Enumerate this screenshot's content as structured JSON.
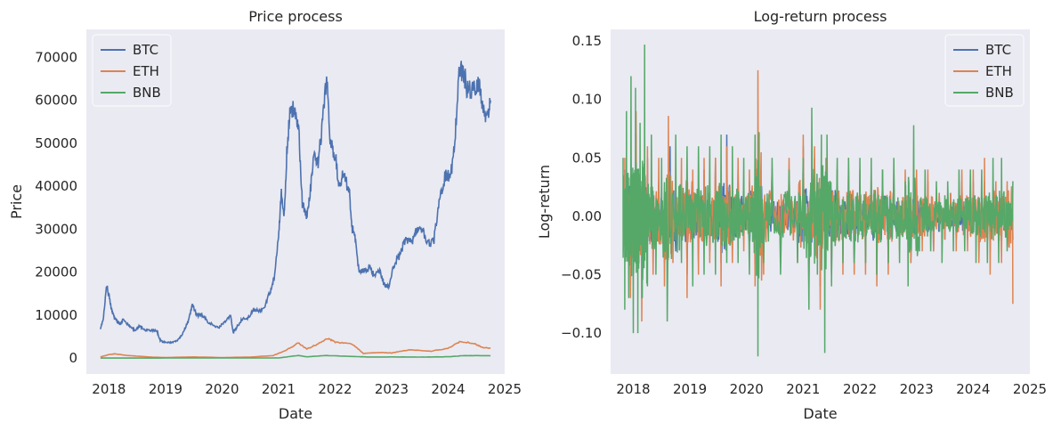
{
  "colors": {
    "background": "#eaeaf2",
    "BTC": "#4c72b0",
    "ETH": "#dd8452",
    "BNB": "#55a868"
  },
  "chart_data": [
    {
      "type": "line",
      "title": "Price process",
      "xlabel": "Date",
      "ylabel": "Price",
      "xlim": [
        2017.6,
        2025.0
      ],
      "ylim": [
        -3700,
        76500
      ],
      "xticks": [
        2018,
        2019,
        2020,
        2021,
        2022,
        2023,
        2024,
        2025
      ],
      "yticks": [
        0,
        10000,
        20000,
        30000,
        40000,
        50000,
        60000,
        70000
      ],
      "grid": false,
      "legend": "top-left",
      "series": [
        {
          "name": "BTC",
          "x": [
            2017.85,
            2017.9,
            2017.96,
            2018.0,
            2018.05,
            2018.1,
            2018.15,
            2018.2,
            2018.25,
            2018.35,
            2018.45,
            2018.55,
            2018.65,
            2018.75,
            2018.85,
            2018.9,
            2018.95,
            2019.0,
            2019.1,
            2019.2,
            2019.3,
            2019.4,
            2019.48,
            2019.55,
            2019.65,
            2019.75,
            2019.85,
            2019.95,
            2020.05,
            2020.15,
            2020.2,
            2020.25,
            2020.35,
            2020.45,
            2020.55,
            2020.65,
            2020.75,
            2020.85,
            2020.92,
            2021.0,
            2021.05,
            2021.1,
            2021.15,
            2021.2,
            2021.28,
            2021.35,
            2021.42,
            2021.5,
            2021.55,
            2021.62,
            2021.7,
            2021.78,
            2021.85,
            2021.92,
            2022.0,
            2022.08,
            2022.15,
            2022.25,
            2022.3,
            2022.35,
            2022.42,
            2022.5,
            2022.6,
            2022.7,
            2022.8,
            2022.87,
            2022.95,
            2023.05,
            2023.15,
            2023.25,
            2023.35,
            2023.45,
            2023.55,
            2023.65,
            2023.75,
            2023.85,
            2023.95,
            2024.05,
            2024.12,
            2024.2,
            2024.28,
            2024.35,
            2024.45,
            2024.55,
            2024.62,
            2024.7,
            2024.75
          ],
          "y": [
            7000,
            9000,
            17000,
            14500,
            11000,
            9500,
            8500,
            7800,
            9000,
            7500,
            6500,
            7500,
            6500,
            6500,
            6300,
            4300,
            3800,
            3700,
            3600,
            4000,
            5500,
            8500,
            12500,
            10000,
            10000,
            8500,
            7500,
            7200,
            8500,
            9800,
            6000,
            7000,
            9000,
            9300,
            11000,
            11000,
            11500,
            15500,
            18500,
            29000,
            38000,
            33000,
            49000,
            57000,
            58000,
            55000,
            36000,
            33000,
            37000,
            47000,
            45000,
            55000,
            65000,
            50000,
            47000,
            40000,
            43000,
            39000,
            30000,
            29000,
            20500,
            20000,
            21000,
            19500,
            20000,
            17000,
            16800,
            22000,
            24000,
            28000,
            27000,
            30000,
            29500,
            26500,
            27500,
            37000,
            42500,
            43000,
            51000,
            68000,
            66000,
            62000,
            63000,
            64000,
            58000,
            56000,
            60000
          ]
        },
        {
          "name": "ETH",
          "x": [
            2017.85,
            2018.0,
            2018.1,
            2018.3,
            2018.5,
            2018.8,
            2019.0,
            2019.5,
            2020.0,
            2020.5,
            2020.9,
            2021.1,
            2021.35,
            2021.5,
            2021.7,
            2021.88,
            2022.0,
            2022.3,
            2022.5,
            2022.8,
            2023.0,
            2023.3,
            2023.7,
            2024.0,
            2024.2,
            2024.45,
            2024.6,
            2024.75
          ],
          "y": [
            300,
            800,
            1000,
            650,
            450,
            200,
            140,
            280,
            130,
            240,
            580,
            1600,
            3500,
            2100,
            3300,
            4600,
            3700,
            3300,
            1100,
            1300,
            1200,
            1900,
            1600,
            2300,
            3800,
            3500,
            2500,
            2300
          ]
        },
        {
          "name": "BNB",
          "x": [
            2017.85,
            2018.5,
            2019.5,
            2020.5,
            2021.0,
            2021.35,
            2021.5,
            2021.85,
            2022.3,
            2022.6,
            2023.0,
            2023.5,
            2024.0,
            2024.3,
            2024.75
          ],
          "y": [
            2,
            12,
            30,
            25,
            40,
            620,
            300,
            600,
            380,
            250,
            280,
            240,
            310,
            600,
            550
          ]
        }
      ]
    },
    {
      "type": "line",
      "title": "Log-return process",
      "xlabel": "Date",
      "ylabel": "Log-return",
      "xlim": [
        2017.6,
        2025.0
      ],
      "ylim": [
        -0.135,
        0.16
      ],
      "xticks": [
        2018,
        2019,
        2020,
        2021,
        2022,
        2023,
        2024,
        2025
      ],
      "yticks": [
        -0.1,
        -0.05,
        0.0,
        0.05,
        0.1,
        0.15
      ],
      "grid": false,
      "legend": "top-right",
      "series": [
        {
          "name": "BTC",
          "x": [
            2017.85,
            2017.95,
            2018.05,
            2018.15,
            2018.25,
            2018.35,
            2018.45,
            2018.55,
            2018.65,
            2018.75,
            2018.85,
            2018.95,
            2019.05,
            2019.15,
            2019.25,
            2019.35,
            2019.45,
            2019.55,
            2019.65,
            2019.75,
            2019.85,
            2019.95,
            2020.05,
            2020.15,
            2020.2,
            2020.3,
            2020.45,
            2020.6,
            2020.75,
            2020.9,
            2021.0,
            2021.1,
            2021.2,
            2021.3,
            2021.4,
            2021.5,
            2021.6,
            2021.7,
            2021.8,
            2021.9,
            2022.0,
            2022.1,
            2022.2,
            2022.3,
            2022.4,
            2022.5,
            2022.6,
            2022.7,
            2022.8,
            2022.9,
            2023.0,
            2023.1,
            2023.2,
            2023.3,
            2023.4,
            2023.5,
            2023.6,
            2023.7,
            2023.8,
            2023.9,
            2024.0,
            2024.1,
            2024.2,
            2024.3,
            2024.4,
            2024.5,
            2024.6,
            2024.7
          ],
          "y": [
            0.04,
            -0.06,
            0.07,
            -0.07,
            0.05,
            -0.04,
            0.03,
            -0.04,
            0.06,
            -0.03,
            0.02,
            -0.05,
            0.03,
            -0.04,
            0.04,
            -0.03,
            0.05,
            -0.04,
            0.07,
            -0.03,
            0.04,
            -0.02,
            0.03,
            -0.05,
            0.07,
            -0.03,
            0.03,
            -0.03,
            0.03,
            -0.03,
            0.06,
            -0.05,
            0.05,
            -0.06,
            0.04,
            -0.05,
            0.04,
            -0.03,
            0.04,
            -0.04,
            0.03,
            -0.04,
            0.03,
            -0.05,
            0.03,
            -0.04,
            0.03,
            -0.02,
            0.02,
            -0.04,
            0.03,
            -0.02,
            0.03,
            -0.03,
            0.02,
            -0.02,
            0.02,
            -0.02,
            0.03,
            -0.02,
            0.03,
            -0.03,
            0.03,
            -0.03,
            0.02,
            -0.03,
            0.02,
            -0.02
          ]
        },
        {
          "name": "ETH",
          "x": [
            2017.85,
            2017.95,
            2018.05,
            2018.15,
            2018.25,
            2018.35,
            2018.45,
            2018.55,
            2018.62,
            2018.7,
            2018.85,
            2018.95,
            2019.05,
            2019.15,
            2019.25,
            2019.35,
            2019.45,
            2019.55,
            2019.65,
            2019.75,
            2019.85,
            2019.95,
            2020.05,
            2020.15,
            2020.2,
            2020.3,
            2020.45,
            2020.6,
            2020.75,
            2020.9,
            2021.0,
            2021.1,
            2021.2,
            2021.3,
            2021.4,
            2021.5,
            2021.6,
            2021.7,
            2021.8,
            2021.9,
            2022.0,
            2022.1,
            2022.2,
            2022.3,
            2022.4,
            2022.5,
            2022.6,
            2022.7,
            2022.8,
            2022.9,
            2023.0,
            2023.1,
            2023.2,
            2023.3,
            2023.4,
            2023.5,
            2023.6,
            2023.7,
            2023.8,
            2023.9,
            2024.0,
            2024.1,
            2024.2,
            2024.3,
            2024.4,
            2024.5,
            2024.6,
            2024.7
          ],
          "y": [
            0.05,
            -0.07,
            0.09,
            -0.09,
            0.06,
            -0.05,
            0.05,
            -0.06,
            0.086,
            -0.04,
            0.05,
            -0.07,
            0.04,
            -0.05,
            0.05,
            -0.04,
            0.05,
            -0.06,
            0.06,
            -0.04,
            0.05,
            -0.03,
            0.04,
            -0.06,
            0.125,
            -0.05,
            0.04,
            -0.04,
            0.05,
            -0.04,
            0.07,
            -0.06,
            0.06,
            -0.08,
            0.05,
            -0.05,
            0.04,
            -0.05,
            0.05,
            -0.05,
            0.04,
            -0.05,
            0.04,
            -0.06,
            0.04,
            -0.05,
            0.04,
            -0.03,
            0.04,
            -0.04,
            0.04,
            -0.03,
            0.04,
            -0.03,
            0.02,
            -0.02,
            0.02,
            -0.03,
            0.04,
            -0.03,
            0.04,
            -0.04,
            0.05,
            -0.05,
            0.03,
            -0.04,
            0.03,
            -0.075
          ]
        },
        {
          "name": "BNB",
          "x": [
            2017.82,
            2017.85,
            2017.88,
            2017.92,
            2017.96,
            2018.0,
            2018.04,
            2018.08,
            2018.12,
            2018.16,
            2018.2,
            2018.25,
            2018.32,
            2018.4,
            2018.5,
            2018.6,
            2018.75,
            2018.85,
            2018.95,
            2019.05,
            2019.15,
            2019.25,
            2019.35,
            2019.45,
            2019.55,
            2019.65,
            2019.75,
            2019.85,
            2019.95,
            2020.05,
            2020.15,
            2020.2,
            2020.22,
            2020.3,
            2020.45,
            2020.6,
            2020.75,
            2020.9,
            2021.0,
            2021.1,
            2021.15,
            2021.25,
            2021.32,
            2021.38,
            2021.42,
            2021.5,
            2021.6,
            2021.7,
            2021.8,
            2021.9,
            2022.0,
            2022.1,
            2022.2,
            2022.3,
            2022.4,
            2022.5,
            2022.6,
            2022.7,
            2022.8,
            2022.85,
            2022.95,
            2023.05,
            2023.15,
            2023.25,
            2023.35,
            2023.45,
            2023.55,
            2023.65,
            2023.75,
            2023.85,
            2023.95,
            2024.05,
            2024.15,
            2024.25,
            2024.35,
            2024.45,
            2024.5,
            2024.6,
            2024.7
          ],
          "y": [
            0.05,
            -0.08,
            0.09,
            -0.07,
            0.12,
            -0.1,
            0.11,
            -0.1,
            0.08,
            -0.07,
            0.147,
            -0.06,
            0.07,
            -0.05,
            0.05,
            -0.09,
            0.07,
            -0.04,
            0.06,
            -0.06,
            0.06,
            -0.05,
            0.06,
            -0.05,
            0.07,
            -0.04,
            0.06,
            -0.04,
            0.05,
            -0.05,
            0.07,
            -0.12,
            0.072,
            -0.04,
            0.05,
            -0.05,
            0.04,
            -0.04,
            0.05,
            -0.08,
            0.093,
            -0.05,
            0.07,
            -0.117,
            0.07,
            -0.06,
            0.05,
            -0.04,
            0.05,
            -0.04,
            0.05,
            -0.04,
            0.05,
            -0.05,
            0.04,
            -0.04,
            0.05,
            -0.04,
            0.03,
            -0.06,
            0.078,
            -0.03,
            0.04,
            -0.03,
            0.03,
            -0.04,
            0.03,
            -0.03,
            0.04,
            -0.03,
            0.04,
            -0.04,
            0.04,
            -0.04,
            0.05,
            -0.04,
            0.05,
            -0.03,
            0.03
          ]
        }
      ]
    }
  ]
}
